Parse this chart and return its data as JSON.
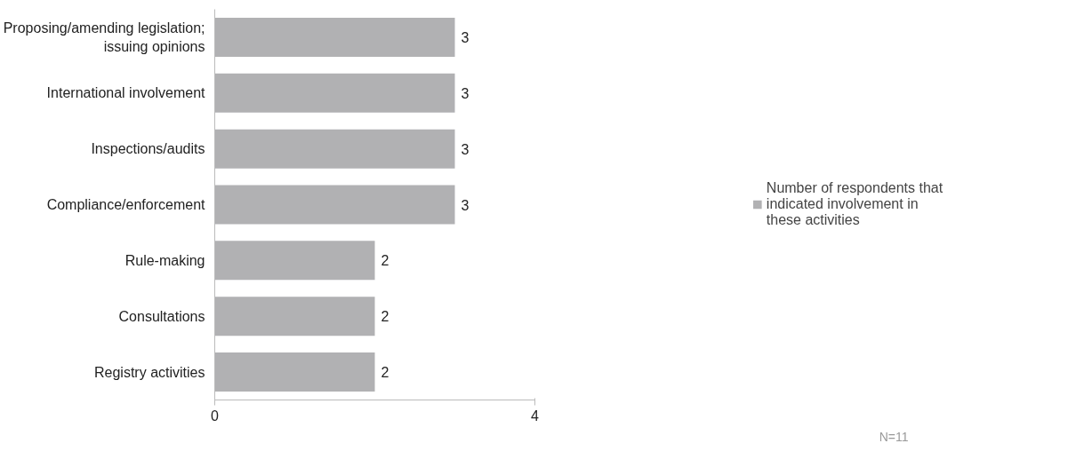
{
  "chart_data": {
    "type": "bar",
    "orientation": "horizontal",
    "categories": [
      "Proposing/amending legislation; issuing opinions",
      "International involvement",
      "Inspections/audits",
      "Compliance/enforcement",
      "Rule-making",
      "Consultations",
      "Registry activities"
    ],
    "series": [
      {
        "name": "Number of respondents that indicated involvement in these activities",
        "color": "#b1b1b3",
        "values": [
          3,
          3,
          3,
          3,
          2,
          2,
          2
        ]
      }
    ],
    "xlim": [
      0,
      4
    ],
    "xticks": [
      0,
      4
    ],
    "data_labels": true,
    "legend": "right",
    "grid": false,
    "annotations": [
      "N=11"
    ]
  }
}
